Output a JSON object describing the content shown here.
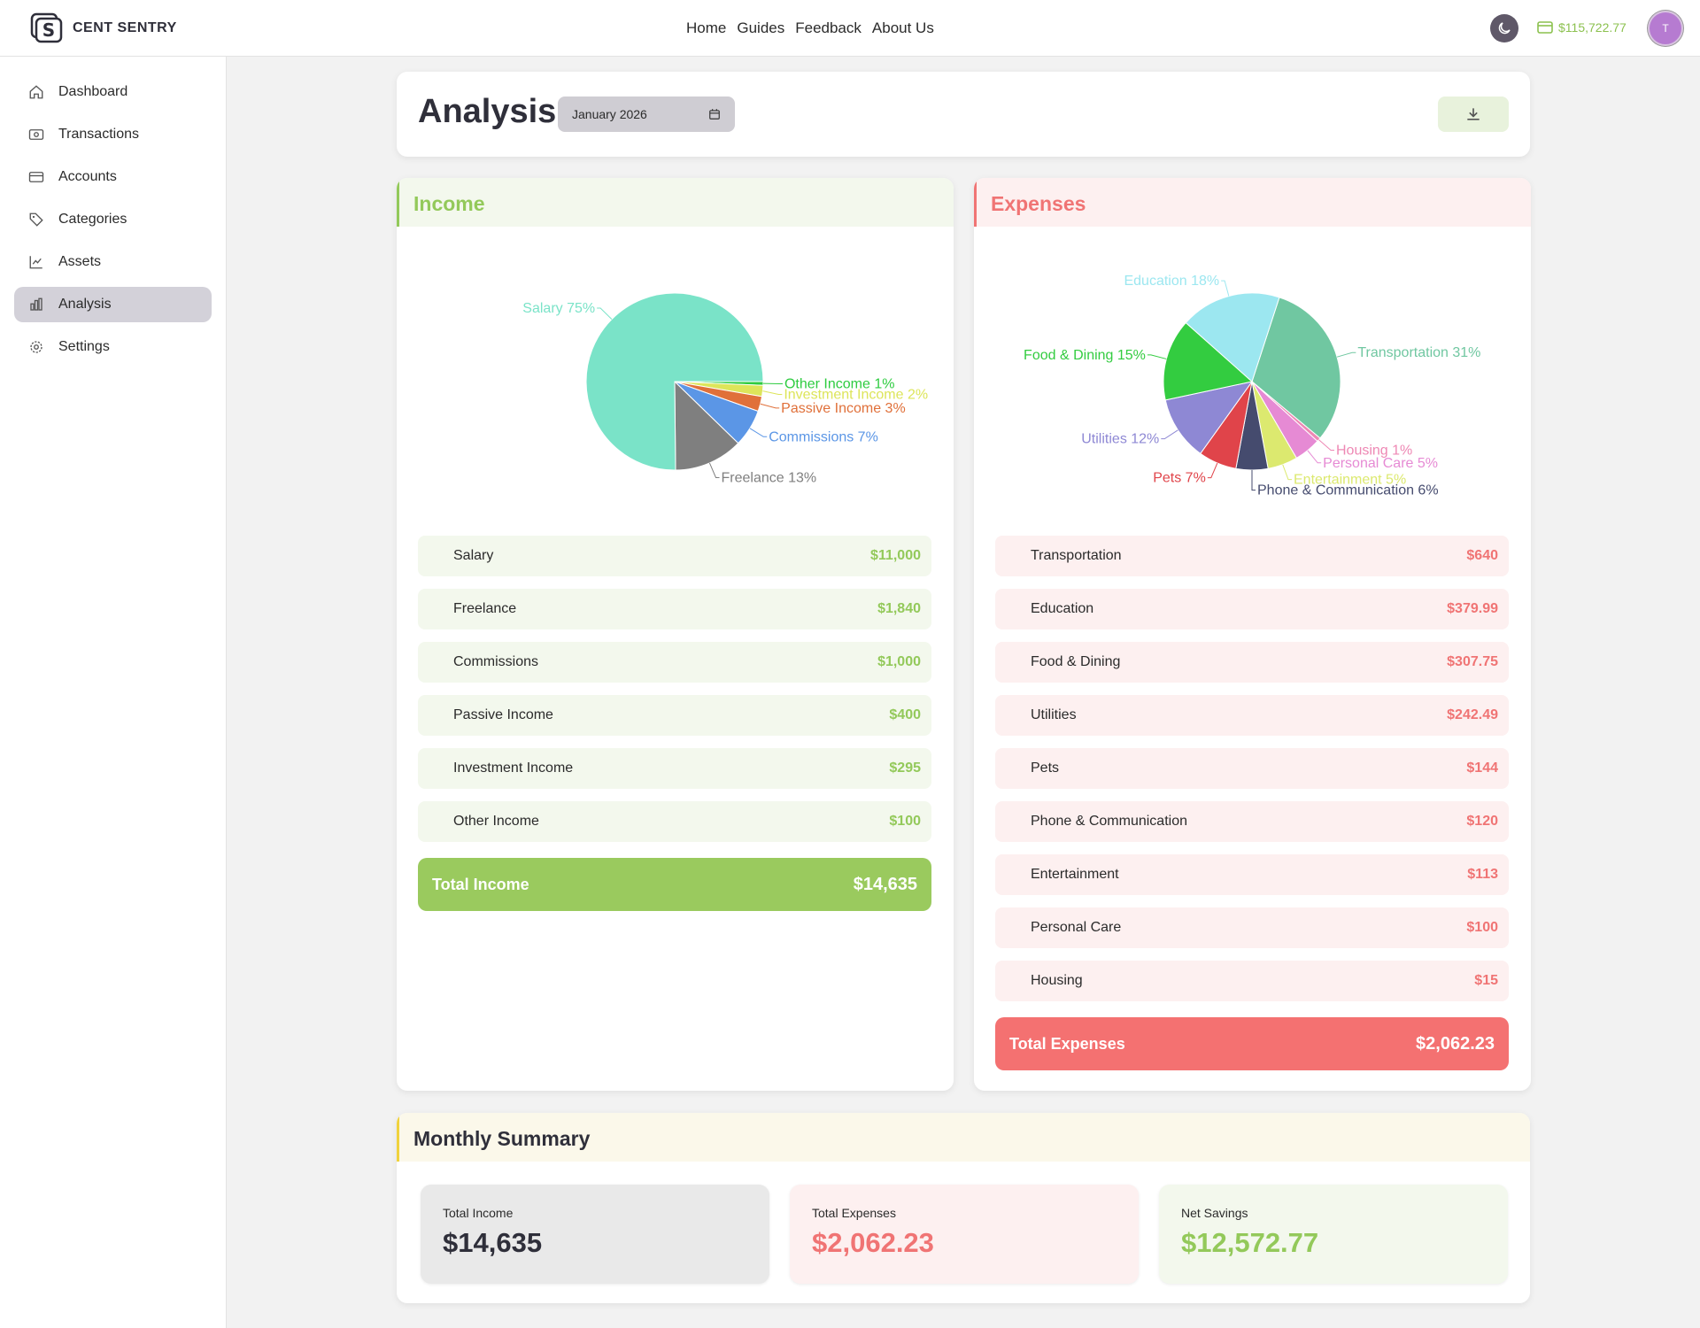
{
  "app": {
    "name": "CENT SENTRY",
    "balance": "$115,722.77",
    "avatar_initial": "T"
  },
  "topnav": {
    "items": [
      "Home",
      "Guides",
      "Feedback",
      "About Us"
    ]
  },
  "sidebar": {
    "items": [
      {
        "label": "Dashboard",
        "icon": "home-icon"
      },
      {
        "label": "Transactions",
        "icon": "cash-icon"
      },
      {
        "label": "Accounts",
        "icon": "card-icon"
      },
      {
        "label": "Categories",
        "icon": "tag-icon"
      },
      {
        "label": "Assets",
        "icon": "chart-icon"
      },
      {
        "label": "Analysis",
        "icon": "bar-chart-icon",
        "active": true
      },
      {
        "label": "Settings",
        "icon": "gear-icon"
      }
    ]
  },
  "header": {
    "title": "Analysis",
    "date": "January 2026"
  },
  "income": {
    "title": "Income",
    "rows": [
      {
        "label": "Salary",
        "amount": "$11,000"
      },
      {
        "label": "Freelance",
        "amount": "$1,840"
      },
      {
        "label": "Commissions",
        "amount": "$1,000"
      },
      {
        "label": "Passive Income",
        "amount": "$400"
      },
      {
        "label": "Investment Income",
        "amount": "$295"
      },
      {
        "label": "Other Income",
        "amount": "$100"
      }
    ],
    "total_label": "Total Income",
    "total_value": "$14,635"
  },
  "expenses": {
    "title": "Expenses",
    "rows": [
      {
        "label": "Transportation",
        "amount": "$640"
      },
      {
        "label": "Education",
        "amount": "$379.99"
      },
      {
        "label": "Food & Dining",
        "amount": "$307.75"
      },
      {
        "label": "Utilities",
        "amount": "$242.49"
      },
      {
        "label": "Pets",
        "amount": "$144"
      },
      {
        "label": "Phone & Communication",
        "amount": "$120"
      },
      {
        "label": "Entertainment",
        "amount": "$113"
      },
      {
        "label": "Personal Care",
        "amount": "$100"
      },
      {
        "label": "Housing",
        "amount": "$15"
      }
    ],
    "total_label": "Total Expenses",
    "total_value": "$2,062.23"
  },
  "summary": {
    "title": "Monthly Summary",
    "income_label": "Total Income",
    "income_value": "$14,635",
    "expenses_label": "Total Expenses",
    "expenses_value": "$2,062.23",
    "net_label": "Net Savings",
    "net_value": "$12,572.77"
  },
  "colors": {
    "income": "#93c95a",
    "expenses": "#f07474",
    "summary": "#f0d23c"
  },
  "chart_data": [
    {
      "type": "pie",
      "title": "",
      "start_angle_deg": 0,
      "direction": "clockwise",
      "slices": [
        {
          "label": "Other Income",
          "pct": "1%",
          "value": 100,
          "color": "#2ecc40"
        },
        {
          "label": "Investment Income",
          "pct": "2%",
          "value": 295,
          "color": "#dde55a"
        },
        {
          "label": "Passive Income",
          "pct": "3%",
          "value": 400,
          "color": "#e0703a"
        },
        {
          "label": "Commissions",
          "pct": "7%",
          "value": 1000,
          "color": "#5b96e6"
        },
        {
          "label": "Freelance",
          "pct": "13%",
          "value": 1840,
          "color": "#7f7f7f"
        },
        {
          "label": "Salary",
          "pct": "75%",
          "value": 11000,
          "color": "#7ae3c8"
        }
      ]
    },
    {
      "type": "pie",
      "title": "",
      "start_angle_deg": -72,
      "direction": "clockwise",
      "slices": [
        {
          "label": "Transportation",
          "pct": "31%",
          "value": 640,
          "color": "#70c7a1"
        },
        {
          "label": "Housing",
          "pct": "1%",
          "value": 15,
          "color": "#ee88b4"
        },
        {
          "label": "Personal Care",
          "pct": "5%",
          "value": 100,
          "color": "#e68ad4"
        },
        {
          "label": "Entertainment",
          "pct": "5%",
          "value": 113,
          "color": "#dce96f"
        },
        {
          "label": "Phone & Communication",
          "pct": "6%",
          "value": 120,
          "color": "#454b6e"
        },
        {
          "label": "Pets",
          "pct": "7%",
          "value": 144,
          "color": "#e0444a"
        },
        {
          "label": "Utilities",
          "pct": "12%",
          "value": 242.49,
          "color": "#8e88d4"
        },
        {
          "label": "Food & Dining",
          "pct": "15%",
          "value": 307.75,
          "color": "#33cc40"
        },
        {
          "label": "Education",
          "pct": "18%",
          "value": 379.99,
          "color": "#9ce7f0"
        }
      ]
    }
  ]
}
